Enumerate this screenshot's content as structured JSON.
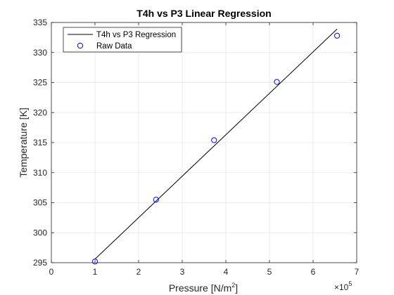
{
  "chart_data": {
    "type": "scatter",
    "title": "T4h vs P3 Linear Regression",
    "xlabel": "Pressure [N/m",
    "xlabel_superscript": "2",
    "xlabel_suffix": "]",
    "ylabel": "Temperature [K]",
    "x_exponent_base": "×10",
    "x_exponent_power": "5",
    "xlim": [
      0,
      7
    ],
    "ylim": [
      295,
      335
    ],
    "x_ticks": [
      "0",
      "1",
      "2",
      "3",
      "4",
      "5",
      "6",
      "7"
    ],
    "y_ticks": [
      "295",
      "300",
      "305",
      "310",
      "315",
      "320",
      "325",
      "330",
      "335"
    ],
    "grid": true,
    "legend_position": "top-left",
    "series": [
      {
        "name": "T4h vs P3 Regression",
        "kind": "line",
        "color": "#000000",
        "x": [
          1.0,
          6.55
        ],
        "y": [
          295.6,
          333.9
        ]
      },
      {
        "name": "Raw Data",
        "kind": "scatter",
        "marker": "open-circle",
        "color": "#0000ff",
        "x": [
          1.0,
          2.4,
          3.73,
          5.17,
          6.55
        ],
        "y": [
          295.2,
          305.5,
          315.4,
          325.1,
          332.8
        ]
      }
    ]
  }
}
